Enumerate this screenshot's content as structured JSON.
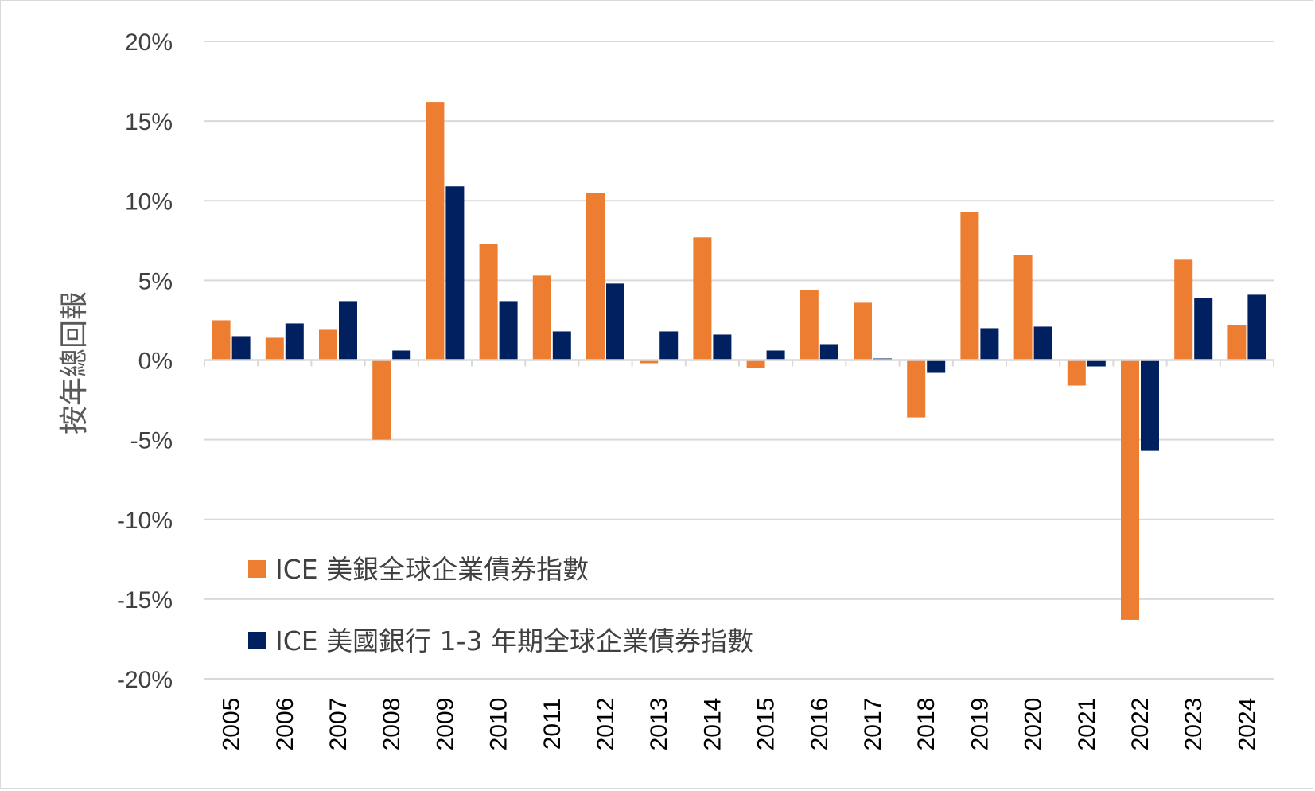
{
  "chart_data": {
    "type": "bar",
    "title": "",
    "xlabel": "",
    "ylabel": "按年總回報",
    "ylim": [
      -20,
      20
    ],
    "yticks": [
      20,
      15,
      10,
      5,
      0,
      -5,
      -10,
      -15,
      -20
    ],
    "ytick_labels": [
      "20%",
      "15%",
      "10%",
      "5%",
      "0%",
      "-5%",
      "-10%",
      "-15%",
      "-20%"
    ],
    "grid": true,
    "legend_position": "bottom-left",
    "categories": [
      "2005",
      "2006",
      "2007",
      "2008",
      "2009",
      "2010",
      "2011",
      "2012",
      "2013",
      "2014",
      "2015",
      "2016",
      "2017",
      "2018",
      "2019",
      "2020",
      "2021",
      "2022",
      "2023",
      "2024"
    ],
    "series": [
      {
        "name": "ICE 美銀全球企業債券指數",
        "color": "#ED7D31",
        "values": [
          2.5,
          1.4,
          1.9,
          -5.0,
          16.2,
          7.3,
          5.3,
          10.5,
          -0.2,
          7.7,
          -0.5,
          4.4,
          3.6,
          -3.6,
          9.3,
          6.6,
          -1.6,
          -16.3,
          6.3,
          2.2
        ]
      },
      {
        "name": "ICE 美國銀行 1-3 年期全球企業債券指數",
        "color": "#002060",
        "values": [
          1.5,
          2.3,
          3.7,
          0.6,
          10.9,
          3.7,
          1.8,
          4.8,
          1.8,
          1.6,
          0.6,
          1.0,
          0.1,
          -0.8,
          2.0,
          2.1,
          -0.4,
          -5.7,
          3.9,
          4.1
        ]
      }
    ]
  }
}
